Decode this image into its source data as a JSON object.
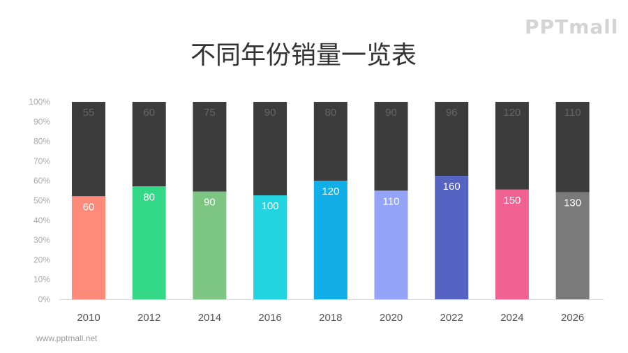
{
  "title": "不同年份销量一览表",
  "logo": "PPTmall",
  "footer": "www.pptmall.net",
  "chart_data": {
    "type": "bar",
    "stacked": "percent",
    "categories": [
      "2010",
      "2012",
      "2014",
      "2016",
      "2018",
      "2020",
      "2022",
      "2024",
      "2026"
    ],
    "series": [
      {
        "values": [
          60,
          80,
          90,
          100,
          120,
          110,
          160,
          150,
          130
        ],
        "colors": [
          "#FF8A7A",
          "#34D987",
          "#7DC583",
          "#22D3E0",
          "#12AEE8",
          "#94A5F9",
          "#5563C3",
          "#F06292",
          "#7A7A7A"
        ]
      },
      {
        "values": [
          55,
          60,
          75,
          90,
          80,
          90,
          96,
          120,
          110
        ],
        "color": "#3C3C3C"
      }
    ],
    "yticks": [
      "0%",
      "10%",
      "20%",
      "30%",
      "40%",
      "50%",
      "60%",
      "70%",
      "80%",
      "90%",
      "100%"
    ],
    "ylim": [
      0,
      100
    ],
    "grid": false,
    "legend": "none"
  }
}
